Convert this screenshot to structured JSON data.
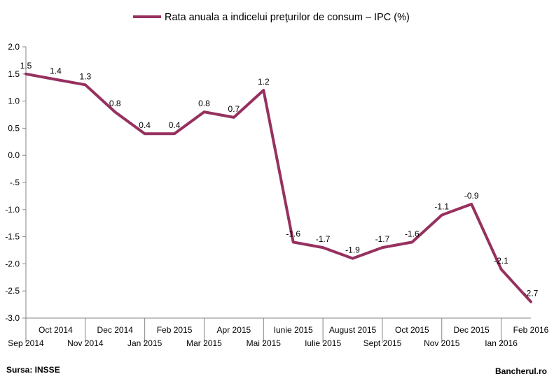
{
  "chart_data": {
    "type": "line",
    "legend": "Rata anuala a indicelui preţurilor de consum – IPC (%)",
    "categories": [
      "Sep 2014",
      "Oct 2014",
      "Nov 2014",
      "Dec 2014",
      "Jan 2015",
      "Feb 2015",
      "Mar 2015",
      "Apr 2015",
      "Mai 2015",
      "Iunie 2015",
      "Iulie 2015",
      "August 2015",
      "Sept 2015",
      "Oct 2015",
      "Nov 2015",
      "Dec 2015",
      "Ian 2016",
      "Feb 2016"
    ],
    "series": [
      {
        "name": "Rata anuala a indicelui preţurilor de consum – IPC (%)",
        "values": [
          1.5,
          1.4,
          1.3,
          0.8,
          0.4,
          0.4,
          0.8,
          0.7,
          1.2,
          -1.6,
          -1.7,
          -1.9,
          -1.7,
          -1.6,
          -1.1,
          -0.9,
          -2.1,
          -2.7
        ],
        "labels": [
          "1.5",
          "1.4",
          "1.3",
          "0.8",
          "0.4",
          "0.4",
          "0.8",
          "0.7",
          "1.2",
          "-1.6",
          "-1.7",
          "-1.9",
          "-1.7",
          "-1.6",
          "-1.1",
          "-0.9",
          "-2.1",
          "-2.7"
        ]
      }
    ],
    "ylim": [
      -3.0,
      2.0
    ],
    "yticks": [
      "2.0",
      "1.5",
      "1.0",
      "0.5",
      "0.0",
      "-.5",
      "-1.0",
      "-1.5",
      "-2.0",
      "-2.5",
      "-3.0"
    ],
    "grid": false,
    "legend_position": "top-center"
  },
  "colors": {
    "series": "#96315f",
    "axis": "#868686"
  },
  "footer": {
    "source": "Sursa: INSSE",
    "brand": "Bancherul.ro"
  }
}
